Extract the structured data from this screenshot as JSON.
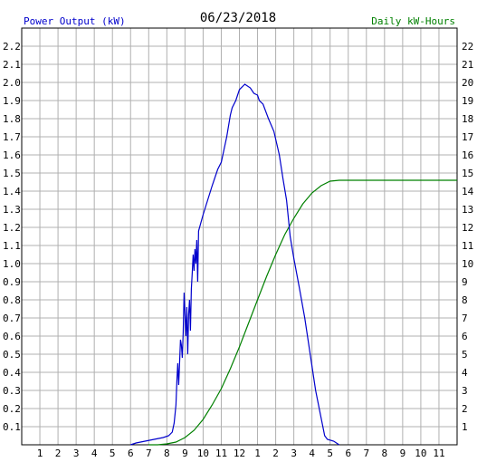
{
  "chart_data": {
    "type": "line",
    "title": "06/23/2018",
    "left_axis_label": "Power Output (kW)",
    "right_axis_label": "Daily kW-Hours",
    "x_tick_labels": [
      "1",
      "2",
      "3",
      "4",
      "5",
      "6",
      "7",
      "8",
      "9",
      "10",
      "11",
      "12",
      "1",
      "2",
      "3",
      "4",
      "5",
      "6",
      "7",
      "8",
      "9",
      "10",
      "11"
    ],
    "x_range_hours": [
      0,
      24
    ],
    "left_ylim": [
      0,
      2.3
    ],
    "left_tick_labels": [
      "0.1",
      "0.2",
      "0.3",
      "0.4",
      "0.5",
      "0.6",
      "0.7",
      "0.8",
      "0.9",
      "1.0",
      "1.1",
      "1.2",
      "1.3",
      "1.4",
      "1.5",
      "1.6",
      "1.7",
      "1.8",
      "1.9",
      "2.0",
      "2.1",
      "2.2"
    ],
    "right_ylim": [
      0,
      23
    ],
    "right_tick_labels": [
      "1",
      "2",
      "3",
      "4",
      "5",
      "6",
      "7",
      "8",
      "9",
      "10",
      "11",
      "12",
      "13",
      "14",
      "15",
      "16",
      "17",
      "18",
      "19",
      "20",
      "21",
      "22"
    ],
    "grid": true,
    "colors": {
      "power": "#0000cc",
      "energy": "#008000",
      "left_label": "#0000cc",
      "right_label": "#008000",
      "grid": "#b0b0b0"
    },
    "series": [
      {
        "axis": "left",
        "points": [
          [
            6.0,
            0
          ],
          [
            6.3,
            0.01
          ],
          [
            6.8,
            0.02
          ],
          [
            7.3,
            0.03
          ],
          [
            7.8,
            0.04
          ],
          [
            8.1,
            0.05
          ],
          [
            8.3,
            0.07
          ],
          [
            8.4,
            0.12
          ],
          [
            8.5,
            0.22
          ],
          [
            8.55,
            0.35
          ],
          [
            8.6,
            0.45
          ],
          [
            8.65,
            0.33
          ],
          [
            8.7,
            0.45
          ],
          [
            8.75,
            0.58
          ],
          [
            8.8,
            0.55
          ],
          [
            8.85,
            0.48
          ],
          [
            8.9,
            0.62
          ],
          [
            8.95,
            0.84
          ],
          [
            9.0,
            0.72
          ],
          [
            9.05,
            0.6
          ],
          [
            9.1,
            0.76
          ],
          [
            9.15,
            0.5
          ],
          [
            9.2,
            0.72
          ],
          [
            9.25,
            0.8
          ],
          [
            9.3,
            0.63
          ],
          [
            9.35,
            0.86
          ],
          [
            9.4,
            0.95
          ],
          [
            9.45,
            1.05
          ],
          [
            9.5,
            0.96
          ],
          [
            9.55,
            1.08
          ],
          [
            9.6,
            1.0
          ],
          [
            9.65,
            1.13
          ],
          [
            9.7,
            0.9
          ],
          [
            9.75,
            1.18
          ],
          [
            10.0,
            1.27
          ],
          [
            10.5,
            1.43
          ],
          [
            10.8,
            1.52
          ],
          [
            11.0,
            1.56
          ],
          [
            11.3,
            1.7
          ],
          [
            11.5,
            1.82
          ],
          [
            11.6,
            1.86
          ],
          [
            11.8,
            1.9
          ],
          [
            12.0,
            1.96
          ],
          [
            12.3,
            1.99
          ],
          [
            12.6,
            1.97
          ],
          [
            12.8,
            1.94
          ],
          [
            13.0,
            1.93
          ],
          [
            13.1,
            1.9
          ],
          [
            13.3,
            1.88
          ],
          [
            13.6,
            1.8
          ],
          [
            13.9,
            1.73
          ],
          [
            14.2,
            1.6
          ],
          [
            14.4,
            1.47
          ],
          [
            14.6,
            1.35
          ],
          [
            14.8,
            1.15
          ],
          [
            15.0,
            1.03
          ],
          [
            15.3,
            0.87
          ],
          [
            15.6,
            0.7
          ],
          [
            15.9,
            0.5
          ],
          [
            16.2,
            0.3
          ],
          [
            16.5,
            0.15
          ],
          [
            16.7,
            0.05
          ],
          [
            16.85,
            0.03
          ],
          [
            17.2,
            0.02
          ],
          [
            17.5,
            0
          ]
        ]
      },
      {
        "axis": "right",
        "points": [
          [
            7.0,
            0
          ],
          [
            7.5,
            0
          ],
          [
            8.0,
            0.05
          ],
          [
            8.5,
            0.15
          ],
          [
            9.0,
            0.4
          ],
          [
            9.5,
            0.8
          ],
          [
            10.0,
            1.4
          ],
          [
            10.5,
            2.2
          ],
          [
            11.0,
            3.1
          ],
          [
            11.5,
            4.2
          ],
          [
            12.0,
            5.4
          ],
          [
            12.5,
            6.7
          ],
          [
            13.0,
            8.0
          ],
          [
            13.5,
            9.3
          ],
          [
            14.0,
            10.5
          ],
          [
            14.5,
            11.6
          ],
          [
            15.0,
            12.5
          ],
          [
            15.5,
            13.3
          ],
          [
            16.0,
            13.9
          ],
          [
            16.5,
            14.3
          ],
          [
            17.0,
            14.55
          ],
          [
            17.5,
            14.6
          ],
          [
            24.0,
            14.6
          ]
        ]
      }
    ]
  }
}
